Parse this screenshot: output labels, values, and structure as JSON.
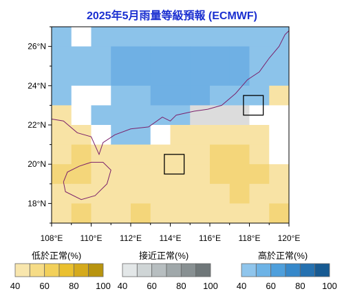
{
  "title": "2025年5月雨量等級預報 (ECMWF)",
  "map": {
    "lon_range": [
      108,
      120
    ],
    "lat_range": [
      17,
      27
    ],
    "x_ticks": [
      "108°E",
      "110°E",
      "112°E",
      "114°E",
      "116°E",
      "118°E",
      "120°E"
    ],
    "y_ticks": [
      "18°N",
      "20°N",
      "22°N",
      "24°N",
      "26°N"
    ],
    "grid_resolution_deg": 1,
    "category_colors": {
      "b_light": "#8cc3ea",
      "b_mid": "#6fb0e4",
      "y_light": "#f8e3a5",
      "y_mid": "#f4d67a",
      "grey": "#dcdcdc",
      "none": "#ffffff"
    },
    "cell_rows_north_to_south": [
      [
        "b_light",
        "w",
        "b_light",
        "b_light",
        "b_light",
        "b_light",
        "b_light",
        "b_light",
        "b_light",
        "b_light",
        "b_light",
        "b_light"
      ],
      [
        "b_light",
        "b_light",
        "b_light",
        "b_mid",
        "b_mid",
        "b_mid",
        "b_mid",
        "b_mid",
        "b_mid",
        "b_mid",
        "b_light",
        "b_light"
      ],
      [
        "b_light",
        "b_light",
        "b_light",
        "b_mid",
        "b_mid",
        "b_mid",
        "b_mid",
        "b_mid",
        "b_mid",
        "b_mid",
        "b_light",
        "b_light"
      ],
      [
        "b_light",
        "w",
        "w",
        "b_light",
        "b_light",
        "b_mid",
        "b_mid",
        "b_mid",
        "b_light",
        "b_light",
        "b_light",
        "y_light"
      ],
      [
        "y_light",
        "w",
        "b_light",
        "b_light",
        "b_light",
        "b_light",
        "b_light",
        "grey",
        "grey",
        "grey",
        "w",
        "w"
      ],
      [
        "y_light",
        "y_light",
        "w",
        "b_light",
        "b_light",
        "w",
        "y_light",
        "y_light",
        "y_light",
        "y_light",
        "y_light",
        "w"
      ],
      [
        "y_light",
        "y_mid",
        "y_light",
        "y_light",
        "y_light",
        "y_light",
        "y_light",
        "y_light",
        "y_mid",
        "y_mid",
        "y_light",
        "w"
      ],
      [
        "y_mid",
        "y_mid",
        "y_light",
        "y_light",
        "y_light",
        "y_light",
        "y_light",
        "y_light",
        "y_mid",
        "y_mid",
        "y_mid",
        "y_light"
      ],
      [
        "y_light",
        "y_light",
        "y_light",
        "y_light",
        "y_light",
        "y_light",
        "y_light",
        "y_light",
        "y_light",
        "y_mid",
        "y_light",
        "y_light"
      ],
      [
        "y_light",
        "y_mid",
        "y_light",
        "y_light",
        "y_mid",
        "y_light",
        "y_light",
        "y_light",
        "y_light",
        "y_light",
        "y_light",
        "y_mid"
      ]
    ],
    "stations": [
      {
        "name": "hong-kong-box",
        "lon_center": 114.2,
        "lat_center": 20.0
      },
      {
        "name": "taiwan-strait-box",
        "lon_center": 118.2,
        "lat_center": 23.0
      }
    ]
  },
  "legends": [
    {
      "title": "低於正常(%)",
      "labels": [
        "40",
        "60",
        "80",
        "100"
      ],
      "colors": [
        "#f8e6ad",
        "#f6dc86",
        "#f2d05a",
        "#eac02f",
        "#d5aa1c",
        "#b8940f"
      ]
    },
    {
      "title": "接近正常(%)",
      "labels": [
        "40",
        "60",
        "80",
        "100"
      ],
      "colors": [
        "#e3e7e8",
        "#cfd5d6",
        "#b7bec0",
        "#a0a8aa",
        "#889092",
        "#6f7779"
      ]
    },
    {
      "title": "高於正常(%)",
      "labels": [
        "40",
        "60",
        "80",
        "100"
      ],
      "colors": [
        "#8fc5ec",
        "#6db3e6",
        "#4e9fdc",
        "#3688ca",
        "#2571b0",
        "#175a92"
      ]
    }
  ]
}
